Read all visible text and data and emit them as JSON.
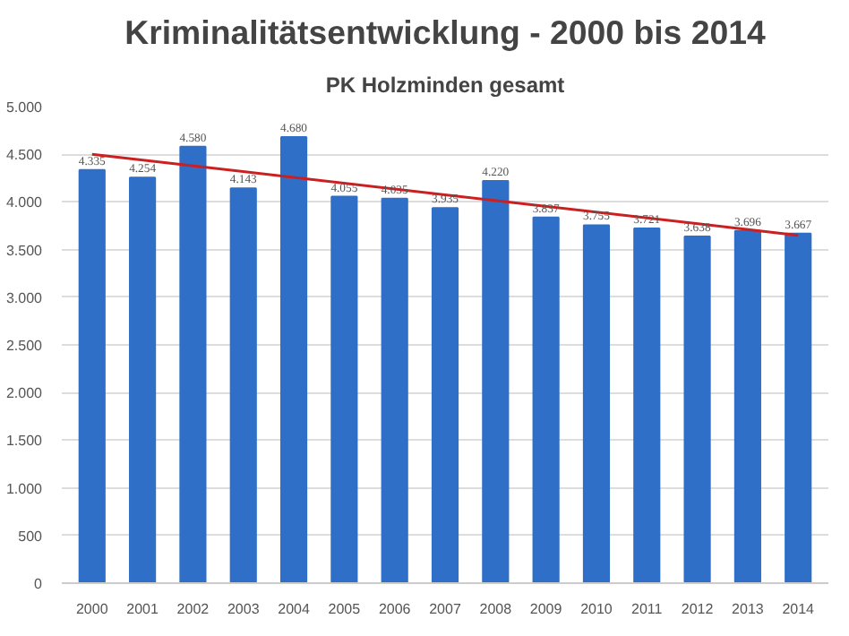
{
  "chart_data": {
    "type": "bar",
    "title": "Kriminalitätsentwicklung - 2000 bis 2014",
    "subtitle": "PK Holzminden gesamt",
    "categories": [
      "2000",
      "2001",
      "2002",
      "2003",
      "2004",
      "2005",
      "2006",
      "2007",
      "2008",
      "2009",
      "2010",
      "2011",
      "2012",
      "2013",
      "2014"
    ],
    "series": [
      {
        "color": "#2f6fc8",
        "values": [
          4335,
          4254,
          4580,
          4143,
          4680,
          4055,
          4035,
          3935,
          4220,
          3837,
          3755,
          3721,
          3638,
          3696,
          3667
        ],
        "value_labels": [
          "4.335",
          "4.254",
          "4.580",
          "4.143",
          "4.680",
          "4.055",
          "4.035",
          "3.935",
          "4.220",
          "3.837",
          "3.755",
          "3.721",
          "3.638",
          "3.696",
          "3.667"
        ]
      },
      {
        "type": "line",
        "color": "#cc1f1f",
        "values": [
          4500,
          null,
          null,
          null,
          null,
          null,
          null,
          null,
          null,
          null,
          null,
          null,
          null,
          null,
          3650
        ]
      }
    ],
    "ylim": [
      0,
      5000
    ],
    "yticks": [
      {
        "value": 0,
        "label": "0"
      },
      {
        "value": 500,
        "label": "500"
      },
      {
        "value": 1000,
        "label": "1.000"
      },
      {
        "value": 1500,
        "label": "1.500"
      },
      {
        "value": 2000,
        "label": "2.000"
      },
      {
        "value": 2500,
        "label": "2.500"
      },
      {
        "value": 3000,
        "label": "3.000"
      },
      {
        "value": 3500,
        "label": "3.500"
      },
      {
        "value": 4000,
        "label": "4.000"
      },
      {
        "value": 4500,
        "label": "4.500"
      },
      {
        "value": 5000,
        "label": "5.000"
      }
    ],
    "grid": "y"
  }
}
